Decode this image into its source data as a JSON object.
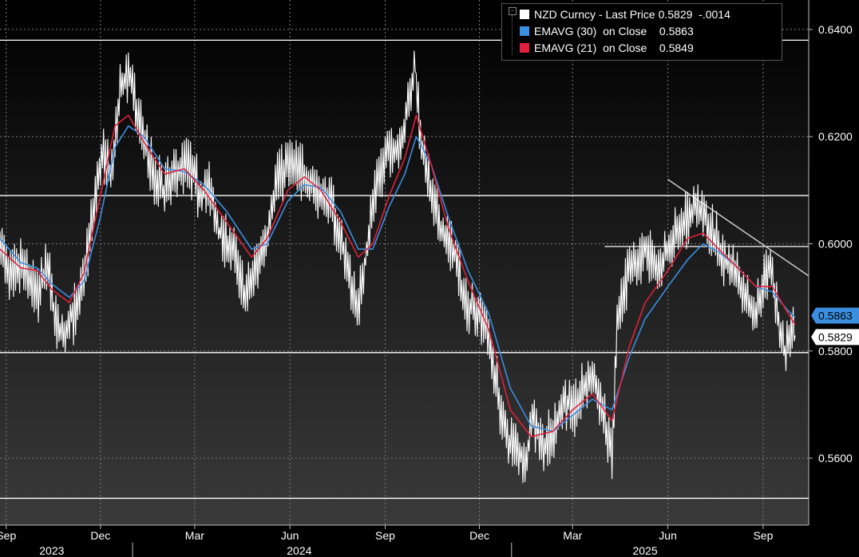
{
  "legend": {
    "items": [
      {
        "text": "NZD Curncy - Last Price 0.5829  -.0014",
        "color": "#ffffff"
      },
      {
        "text": "EMAVG (30)  on Close    0.5863",
        "color": "#3a8fe0"
      },
      {
        "text": "EMAVG (21)  on Close    0.5849",
        "color": "#e0203c"
      }
    ]
  },
  "price_tags": [
    {
      "label": "0.5863",
      "value": 0.5863,
      "bg": "#3a8fe0",
      "fg": "#000000"
    },
    {
      "label": "0.5829",
      "value": 0.5829,
      "bg": "#ffffff",
      "fg": "#000000"
    }
  ],
  "colors": {
    "background_top": "#000000",
    "background_bottom": "#3a3a3a",
    "price": "#ffffff",
    "ema30": "#3a8fe0",
    "ema21": "#e0203c",
    "grid": "#7a7a7a",
    "hline": "#ffffff",
    "trendline": "#c8c8c8"
  },
  "chart_data": {
    "type": "line",
    "series_name": "NZD Curncy - Last Price",
    "ylim": [
      0.5475,
      0.6455
    ],
    "y_ticks": [
      "0.5600",
      "0.5800",
      "0.6000",
      "0.6200",
      "0.6400"
    ],
    "y_tick_values": [
      0.56,
      0.58,
      0.6,
      0.62,
      0.64
    ],
    "x_ticks": [
      "Sep",
      "Dec",
      "Mar",
      "Jun",
      "Sep",
      "Dec",
      "Mar",
      "Jun",
      "Sep"
    ],
    "x_tick_dates": [
      "2023-09-01",
      "2023-12-01",
      "2024-03-01",
      "2024-06-01",
      "2024-09-01",
      "2024-12-01",
      "2025-03-01",
      "2025-06-01",
      "2025-09-01"
    ],
    "x_range": [
      "2023-08-26",
      "2025-10-15"
    ],
    "years": [
      "2023",
      "2024",
      "2025"
    ],
    "grid": true,
    "legend_position": "top-right",
    "price_points": [
      [
        "2023-08-26",
        0.6
      ],
      [
        "2023-09-05",
        0.593
      ],
      [
        "2023-09-15",
        0.596
      ],
      [
        "2023-09-25",
        0.593
      ],
      [
        "2023-10-02",
        0.59
      ],
      [
        "2023-10-10",
        0.596
      ],
      [
        "2023-10-20",
        0.585
      ],
      [
        "2023-10-26",
        0.5815
      ],
      [
        "2023-11-01",
        0.586
      ],
      [
        "2023-11-10",
        0.588
      ],
      [
        "2023-11-16",
        0.596
      ],
      [
        "2023-11-22",
        0.603
      ],
      [
        "2023-11-28",
        0.612
      ],
      [
        "2023-12-04",
        0.616
      ],
      [
        "2023-12-12",
        0.613
      ],
      [
        "2023-12-20",
        0.628
      ],
      [
        "2023-12-28",
        0.633
      ],
      [
        "2024-01-04",
        0.625
      ],
      [
        "2024-01-12",
        0.62
      ],
      [
        "2024-01-22",
        0.612
      ],
      [
        "2024-02-01",
        0.61
      ],
      [
        "2024-02-12",
        0.613
      ],
      [
        "2024-02-22",
        0.616
      ],
      [
        "2024-03-05",
        0.61
      ],
      [
        "2024-03-15",
        0.61
      ],
      [
        "2024-03-25",
        0.602
      ],
      [
        "2024-04-05",
        0.6
      ],
      [
        "2024-04-15",
        0.593
      ],
      [
        "2024-04-20",
        0.59
      ],
      [
        "2024-04-30",
        0.596
      ],
      [
        "2024-05-10",
        0.602
      ],
      [
        "2024-05-20",
        0.613
      ],
      [
        "2024-05-30",
        0.615
      ],
      [
        "2024-06-10",
        0.614
      ],
      [
        "2024-06-20",
        0.612
      ],
      [
        "2024-06-30",
        0.609
      ],
      [
        "2024-07-10",
        0.608
      ],
      [
        "2024-07-20",
        0.601
      ],
      [
        "2024-07-31",
        0.592
      ],
      [
        "2024-08-06",
        0.588
      ],
      [
        "2024-08-14",
        0.599
      ],
      [
        "2024-08-24",
        0.612
      ],
      [
        "2024-09-04",
        0.617
      ],
      [
        "2024-09-14",
        0.618
      ],
      [
        "2024-09-24",
        0.626
      ],
      [
        "2024-09-30",
        0.633
      ],
      [
        "2024-10-06",
        0.619
      ],
      [
        "2024-10-16",
        0.608
      ],
      [
        "2024-10-26",
        0.602
      ],
      [
        "2024-11-06",
        0.599
      ],
      [
        "2024-11-16",
        0.59
      ],
      [
        "2024-11-26",
        0.588
      ],
      [
        "2024-12-06",
        0.586
      ],
      [
        "2024-12-16",
        0.576
      ],
      [
        "2024-12-26",
        0.564
      ],
      [
        "2025-01-06",
        0.562
      ],
      [
        "2025-01-14",
        0.559
      ],
      [
        "2025-01-22",
        0.568
      ],
      [
        "2025-02-01",
        0.562
      ],
      [
        "2025-02-10",
        0.564
      ],
      [
        "2025-02-20",
        0.571
      ],
      [
        "2025-03-02",
        0.569
      ],
      [
        "2025-03-12",
        0.573
      ],
      [
        "2025-03-20",
        0.575
      ],
      [
        "2025-03-30",
        0.569
      ],
      [
        "2025-04-08",
        0.56
      ],
      [
        "2025-04-13",
        0.584
      ],
      [
        "2025-04-23",
        0.594
      ],
      [
        "2025-05-01",
        0.596
      ],
      [
        "2025-05-11",
        0.599
      ],
      [
        "2025-05-21",
        0.595
      ],
      [
        "2025-05-31",
        0.598
      ],
      [
        "2025-06-10",
        0.603
      ],
      [
        "2025-06-20",
        0.605
      ],
      [
        "2025-06-30",
        0.607
      ],
      [
        "2025-07-08",
        0.604
      ],
      [
        "2025-07-16",
        0.601
      ],
      [
        "2025-07-26",
        0.597
      ],
      [
        "2025-08-05",
        0.595
      ],
      [
        "2025-08-15",
        0.59
      ],
      [
        "2025-08-25",
        0.587
      ],
      [
        "2025-09-02",
        0.593
      ],
      [
        "2025-09-08",
        0.597
      ],
      [
        "2025-09-14",
        0.588
      ],
      [
        "2025-09-22",
        0.579
      ],
      [
        "2025-09-28",
        0.584
      ],
      [
        "2025-10-02",
        0.5829
      ]
    ],
    "ema30_points": [
      [
        "2023-08-26",
        0.601
      ],
      [
        "2023-09-15",
        0.5965
      ],
      [
        "2023-10-01",
        0.5955
      ],
      [
        "2023-10-15",
        0.5925
      ],
      [
        "2023-11-01",
        0.59
      ],
      [
        "2023-11-15",
        0.593
      ],
      [
        "2023-12-01",
        0.605
      ],
      [
        "2023-12-15",
        0.618
      ],
      [
        "2023-12-28",
        0.622
      ],
      [
        "2024-01-12",
        0.62
      ],
      [
        "2024-02-01",
        0.614
      ],
      [
        "2024-02-20",
        0.6135
      ],
      [
        "2024-03-10",
        0.611
      ],
      [
        "2024-04-01",
        0.606
      ],
      [
        "2024-04-25",
        0.599
      ],
      [
        "2024-05-10",
        0.6
      ],
      [
        "2024-05-30",
        0.608
      ],
      [
        "2024-06-15",
        0.611
      ],
      [
        "2024-07-01",
        0.6105
      ],
      [
        "2024-07-20",
        0.606
      ],
      [
        "2024-08-06",
        0.599
      ],
      [
        "2024-08-20",
        0.599
      ],
      [
        "2024-09-05",
        0.607
      ],
      [
        "2024-09-20",
        0.613
      ],
      [
        "2024-10-01",
        0.62
      ],
      [
        "2024-10-15",
        0.615
      ],
      [
        "2024-11-01",
        0.605
      ],
      [
        "2024-11-20",
        0.595
      ],
      [
        "2024-12-10",
        0.587
      ],
      [
        "2024-12-31",
        0.573
      ],
      [
        "2025-01-20",
        0.566
      ],
      [
        "2025-02-10",
        0.565
      ],
      [
        "2025-03-01",
        0.568
      ],
      [
        "2025-03-20",
        0.571
      ],
      [
        "2025-04-08",
        0.569
      ],
      [
        "2025-04-25",
        0.579
      ],
      [
        "2025-05-10",
        0.586
      ],
      [
        "2025-06-01",
        0.592
      ],
      [
        "2025-06-20",
        0.597
      ],
      [
        "2025-07-05",
        0.6
      ],
      [
        "2025-07-20",
        0.5985
      ],
      [
        "2025-08-05",
        0.596
      ],
      [
        "2025-08-25",
        0.592
      ],
      [
        "2025-09-10",
        0.591
      ],
      [
        "2025-09-25",
        0.5875
      ],
      [
        "2025-10-02",
        0.5863
      ]
    ],
    "ema21_points": [
      [
        "2023-08-26",
        0.599
      ],
      [
        "2023-09-15",
        0.5955
      ],
      [
        "2023-10-01",
        0.595
      ],
      [
        "2023-10-15",
        0.5915
      ],
      [
        "2023-11-01",
        0.589
      ],
      [
        "2023-11-15",
        0.5945
      ],
      [
        "2023-12-01",
        0.609
      ],
      [
        "2023-12-15",
        0.622
      ],
      [
        "2023-12-28",
        0.624
      ],
      [
        "2024-01-12",
        0.619
      ],
      [
        "2024-02-01",
        0.613
      ],
      [
        "2024-02-20",
        0.614
      ],
      [
        "2024-03-10",
        0.61
      ],
      [
        "2024-04-01",
        0.604
      ],
      [
        "2024-04-25",
        0.5975
      ],
      [
        "2024-05-10",
        0.601
      ],
      [
        "2024-05-30",
        0.61
      ],
      [
        "2024-06-15",
        0.6125
      ],
      [
        "2024-07-01",
        0.61
      ],
      [
        "2024-07-20",
        0.604
      ],
      [
        "2024-08-06",
        0.5975
      ],
      [
        "2024-08-20",
        0.6
      ],
      [
        "2024-09-05",
        0.609
      ],
      [
        "2024-09-20",
        0.616
      ],
      [
        "2024-10-01",
        0.624
      ],
      [
        "2024-10-15",
        0.615
      ],
      [
        "2024-11-01",
        0.603
      ],
      [
        "2024-11-20",
        0.593
      ],
      [
        "2024-12-10",
        0.584
      ],
      [
        "2024-12-31",
        0.569
      ],
      [
        "2025-01-20",
        0.564
      ],
      [
        "2025-02-10",
        0.565
      ],
      [
        "2025-03-01",
        0.569
      ],
      [
        "2025-03-20",
        0.572
      ],
      [
        "2025-04-08",
        0.567
      ],
      [
        "2025-04-25",
        0.581
      ],
      [
        "2025-05-10",
        0.589
      ],
      [
        "2025-06-01",
        0.595
      ],
      [
        "2025-06-20",
        0.601
      ],
      [
        "2025-07-05",
        0.602
      ],
      [
        "2025-07-20",
        0.599
      ],
      [
        "2025-08-05",
        0.596
      ],
      [
        "2025-08-25",
        0.592
      ],
      [
        "2025-09-10",
        0.592
      ],
      [
        "2025-09-25",
        0.587
      ],
      [
        "2025-10-02",
        0.5849
      ]
    ],
    "reference_lines": [
      {
        "value": 0.638
      },
      {
        "value": 0.609
      },
      {
        "value": 0.5995,
        "from": "2025-04-01"
      },
      {
        "value": 0.5797
      },
      {
        "value": 0.5525
      }
    ],
    "trendline": [
      [
        "2025-06-01",
        0.612
      ],
      [
        "2025-10-15",
        0.594
      ]
    ]
  }
}
